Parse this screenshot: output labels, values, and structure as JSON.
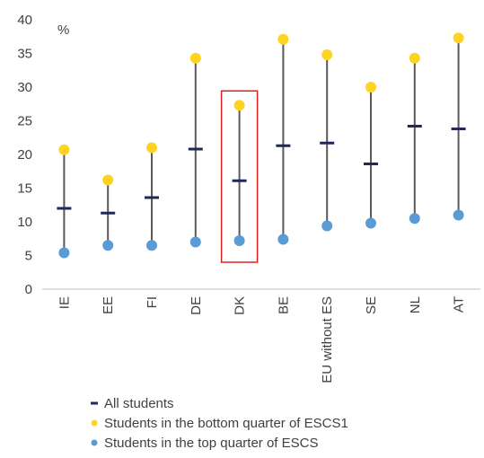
{
  "chart_data": {
    "type": "scatter",
    "title": "",
    "xlabel": "",
    "ylabel": "",
    "unit_label": "%",
    "ylim": [
      0,
      40
    ],
    "yticks": [
      0,
      5,
      10,
      15,
      20,
      25,
      30,
      35,
      40
    ],
    "grid": false,
    "legend_position": "bottom",
    "highlight_category": "DK",
    "categories": [
      "IE",
      "EE",
      "FI",
      "DE",
      "DK",
      "BE",
      "EU without ES",
      "SE",
      "NL",
      "AT"
    ],
    "series": [
      {
        "name": "All students",
        "marker": "dash",
        "color": "#1f2a5a",
        "values": [
          12.0,
          11.3,
          13.6,
          20.8,
          16.1,
          21.3,
          21.7,
          18.6,
          24.2,
          23.8
        ]
      },
      {
        "name": "Students in the bottom quarter of ESCS1",
        "marker": "circle",
        "color": "#ffd320",
        "values": [
          20.7,
          16.2,
          21.0,
          34.3,
          27.3,
          37.1,
          34.8,
          30.0,
          34.3,
          37.3
        ]
      },
      {
        "name": "Students in the top quarter of ESCS",
        "marker": "circle",
        "color": "#5b9bd5",
        "values": [
          5.4,
          6.5,
          6.5,
          7.0,
          7.2,
          7.4,
          9.4,
          9.8,
          10.5,
          11.0
        ]
      }
    ],
    "colors": {
      "range_line": "#595959",
      "axis": "#bfbfbf",
      "highlight_box": "#e02020"
    }
  }
}
